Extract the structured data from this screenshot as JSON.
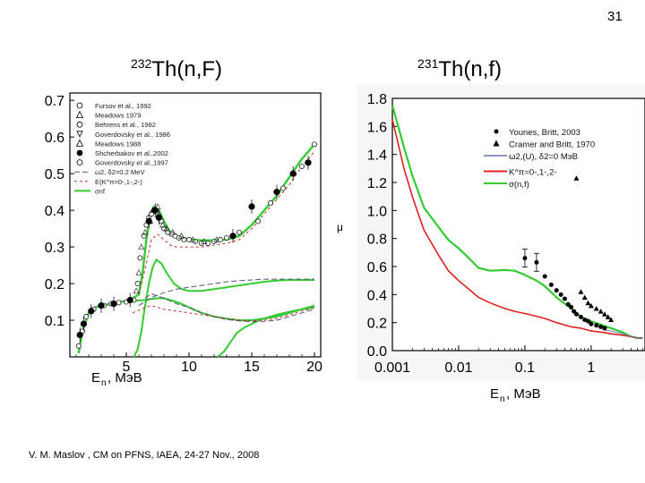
{
  "slide": {
    "page_number": "31",
    "footer": "V. M. Maslov ,   CM on PFNS, IAEA, 24-27 Nov., 2008"
  },
  "chart_data": [
    {
      "type": "scatter",
      "title_mass": "232",
      "title_text": "Th(n,F)",
      "xlabel_main": "E",
      "xlabel_sub": "n",
      "xlabel_unit": ", МэВ",
      "xlim": [
        0.5,
        20.5
      ],
      "ylim": [
        0.0,
        0.72
      ],
      "xticks": [
        5,
        10,
        15,
        20
      ],
      "yticks": [
        0.1,
        0.2,
        0.3,
        0.4,
        0.5,
        0.6,
        0.7
      ],
      "tick_labels_x": [
        "5",
        "10",
        "15",
        "20"
      ],
      "tick_labels_y": [
        "0.1",
        "0.2",
        "0.3",
        "0.4",
        "0.5",
        "0.6",
        "0.7"
      ],
      "legend": [
        {
          "label": "Fursov et al., 1992",
          "marker": "circle-open"
        },
        {
          "label": "Meadows 1979",
          "marker": "triangle-open"
        },
        {
          "label": "Behrens et al., 1982",
          "marker": "circle-open"
        },
        {
          "label": "Goverdovsky et al., 1986",
          "marker": "triangle-down-open"
        },
        {
          "label": "Meadows 1988",
          "marker": "triangle-open"
        },
        {
          "label": "Shcherbakov et al.,2002",
          "marker": "circle-filled"
        },
        {
          "label": "Goverdovsky et al.,1997",
          "marker": "circle-open"
        },
        {
          "label": "ω2, δ2=0.2 MeV",
          "line": "#555577",
          "dash": "6,3"
        },
        {
          "label": "E(K^π=0-,1-,2-)",
          "line": "#c03030",
          "dash": "3,3"
        },
        {
          "label": "σnf",
          "line": "#33cc33",
          "dash": ""
        }
      ],
      "series": [
        {
          "name": "σnf",
          "color": "#33cc33",
          "width": 2.4,
          "x": [
            1.2,
            1.5,
            2,
            2.5,
            3,
            3.5,
            4,
            4.5,
            5,
            5.5,
            6,
            6.3,
            6.6,
            6.9,
            7.2,
            7.6,
            8,
            8.5,
            9,
            9.5,
            10,
            11,
            12,
            13,
            14,
            15,
            16,
            17,
            18,
            19,
            19.5,
            20
          ],
          "y": [
            0.01,
            0.07,
            0.12,
            0.135,
            0.14,
            0.143,
            0.147,
            0.15,
            0.152,
            0.16,
            0.17,
            0.23,
            0.32,
            0.39,
            0.41,
            0.4,
            0.37,
            0.34,
            0.33,
            0.325,
            0.32,
            0.318,
            0.318,
            0.32,
            0.33,
            0.36,
            0.4,
            0.44,
            0.49,
            0.54,
            0.56,
            0.58
          ]
        },
        {
          "name": "second-chance fission",
          "color": "#33cc33",
          "width": 2.0,
          "x": [
            5.6,
            5.9,
            6.2,
            6.5,
            6.8,
            7.1,
            7.4,
            7.8,
            8.2,
            8.8,
            9.4,
            10,
            11,
            12,
            13,
            14,
            15,
            16,
            17,
            18,
            19,
            20
          ],
          "y": [
            0.0,
            0.02,
            0.07,
            0.14,
            0.2,
            0.245,
            0.265,
            0.255,
            0.23,
            0.2,
            0.185,
            0.18,
            0.18,
            0.185,
            0.19,
            0.195,
            0.2,
            0.205,
            0.208,
            0.21,
            0.21,
            0.21
          ]
        },
        {
          "name": "first-chance fission",
          "color": "#33cc33",
          "width": 2.0,
          "x": [
            1.2,
            1.5,
            2,
            2.5,
            3,
            3.5,
            4,
            4.5,
            5,
            5.5,
            6,
            6.5,
            7,
            7.5,
            8,
            8.5,
            9,
            9.5,
            10,
            11,
            12,
            13,
            14,
            15,
            16,
            17,
            18,
            19,
            20
          ],
          "y": [
            0.01,
            0.07,
            0.12,
            0.135,
            0.14,
            0.143,
            0.147,
            0.15,
            0.152,
            0.153,
            0.154,
            0.155,
            0.158,
            0.16,
            0.16,
            0.155,
            0.15,
            0.143,
            0.135,
            0.12,
            0.11,
            0.104,
            0.1,
            0.1,
            0.105,
            0.11,
            0.12,
            0.13,
            0.14
          ]
        },
        {
          "name": "third-chance fission",
          "color": "#33cc33",
          "width": 2.0,
          "x": [
            12.3,
            12.8,
            13.3,
            13.8,
            14.4,
            15,
            15.6,
            16.2,
            17,
            18,
            19,
            20
          ],
          "y": [
            0.0,
            0.015,
            0.04,
            0.065,
            0.08,
            0.09,
            0.1,
            0.107,
            0.115,
            0.123,
            0.13,
            0.135
          ]
        },
        {
          "name": "ω2 rising",
          "color": "#555577",
          "width": 1.0,
          "dash": "6,3",
          "x": [
            6,
            7,
            8,
            9,
            10,
            11,
            12,
            13,
            14,
            15,
            16,
            17,
            18,
            19,
            20
          ],
          "y": [
            0.14,
            0.162,
            0.175,
            0.185,
            0.19,
            0.195,
            0.2,
            0.205,
            0.208,
            0.21,
            0.212,
            0.212,
            0.212,
            0.212,
            0.212
          ]
        },
        {
          "name": "ω2 decaying",
          "color": "#555577",
          "width": 1.0,
          "dash": "6,3",
          "x": [
            6.5,
            7,
            8,
            9,
            10,
            11,
            12,
            13,
            14,
            15,
            16,
            17,
            18,
            19,
            20
          ],
          "y": [
            0.16,
            0.172,
            0.16,
            0.145,
            0.135,
            0.12,
            0.11,
            0.102,
            0.098,
            0.096,
            0.097,
            0.1,
            0.11,
            0.12,
            0.13
          ]
        },
        {
          "name": "E(K) main",
          "color": "#c03030",
          "width": 1.0,
          "dash": "3,3",
          "x": [
            6,
            6.5,
            7,
            7.5,
            8,
            8.5,
            9,
            10,
            11,
            12,
            13,
            14,
            15,
            16,
            17,
            18,
            19,
            20
          ],
          "y": [
            0.17,
            0.24,
            0.32,
            0.335,
            0.32,
            0.305,
            0.3,
            0.3,
            0.3,
            0.305,
            0.31,
            0.32,
            0.35,
            0.39,
            0.43,
            0.47,
            0.52,
            0.56
          ]
        },
        {
          "name": "E(K) lower",
          "color": "#c03030",
          "width": 1.0,
          "dash": "3,3",
          "x": [
            5.5,
            6.5,
            7,
            8,
            9,
            10,
            11,
            12,
            13,
            14,
            15,
            16,
            17,
            18,
            19,
            20
          ],
          "y": [
            0.12,
            0.135,
            0.14,
            0.13,
            0.125,
            0.12,
            0.115,
            0.11,
            0.105,
            0.1,
            0.098,
            0.1,
            0.105,
            0.115,
            0.125,
            0.135
          ]
        }
      ],
      "points_filled": {
        "x": [
          1.3,
          1.6,
          2.2,
          3,
          4,
          5.3,
          6.8,
          7.3,
          7.6,
          13.5,
          15,
          17,
          18.3,
          19.5
        ],
        "y": [
          0.06,
          0.09,
          0.125,
          0.14,
          0.145,
          0.155,
          0.37,
          0.4,
          0.38,
          0.33,
          0.41,
          0.45,
          0.5,
          0.53
        ]
      },
      "points_open": {
        "x": [
          1.2,
          1.5,
          1.8,
          2.4,
          3.2,
          3.8,
          4.4,
          5.0,
          5.6,
          5.9,
          6.1,
          6.4,
          6.6,
          6.8,
          7.0,
          7.2,
          7.4,
          7.6,
          7.8,
          8.0,
          8.3,
          8.6,
          8.9,
          9.2,
          9.6,
          10.0,
          10.5,
          11,
          11.5,
          12,
          12.5,
          13,
          14,
          15.5,
          16.5,
          17.5,
          19,
          20
        ],
        "y": [
          0.03,
          0.07,
          0.11,
          0.13,
          0.14,
          0.145,
          0.148,
          0.15,
          0.155,
          0.2,
          0.27,
          0.33,
          0.36,
          0.38,
          0.39,
          0.4,
          0.395,
          0.385,
          0.37,
          0.35,
          0.34,
          0.335,
          0.33,
          0.325,
          0.32,
          0.32,
          0.315,
          0.31,
          0.31,
          0.315,
          0.32,
          0.325,
          0.34,
          0.37,
          0.42,
          0.46,
          0.52,
          0.58
        ]
      },
      "points_triangle": {
        "x": [
          5.8,
          6.0,
          6.2,
          6.5,
          6.9,
          7.1,
          7.5,
          7.9,
          8.2,
          8.7,
          9.4,
          10.3,
          11.2,
          12.2
        ],
        "y": [
          0.18,
          0.23,
          0.3,
          0.34,
          0.37,
          0.4,
          0.41,
          0.36,
          0.35,
          0.34,
          0.33,
          0.32,
          0.315,
          0.32
        ]
      }
    },
    {
      "type": "scatter",
      "title_mass": "231",
      "title_text": "Th(n,f)",
      "xlabel_main": "E",
      "xlabel_sub": "n",
      "xlabel_unit": ", МэВ",
      "xscale": "log",
      "xlim": [
        0.001,
        6.5
      ],
      "ylim": [
        0.0,
        1.8
      ],
      "xticks": [
        0.001,
        0.01,
        0.1,
        1
      ],
      "yticks": [
        0.0,
        0.2,
        0.4,
        0.6,
        0.8,
        1.0,
        1.2,
        1.4,
        1.6,
        1.8
      ],
      "tick_labels_x": [
        "0.001",
        "0.01",
        "0.1",
        "1"
      ],
      "tick_labels_y": [
        "0.0",
        "0.2",
        "0.4",
        "0.6",
        "0.8",
        "1.0",
        "1.2",
        "1.4",
        "1.6",
        "1.8"
      ],
      "ylabel": "μ",
      "legend": [
        {
          "label": "Younes, Britt, 2003",
          "marker": "circle-filled"
        },
        {
          "label": "Cramer and Britt, 1970",
          "marker": "triangle-filled"
        },
        {
          "label": "ω2,(U), δ2=0 MэВ",
          "line": "#6677aa",
          "dash": ""
        },
        {
          "label": "K^π=0-,1-,2-",
          "line": "#e02020",
          "dash": ""
        },
        {
          "label": "σ(n,f)",
          "line": "#33cc33",
          "dash": ""
        }
      ],
      "series": [
        {
          "name": "σ(n,f)",
          "color": "#33cc33",
          "width": 2.2,
          "x": [
            0.001,
            0.0015,
            0.002,
            0.003,
            0.005,
            0.007,
            0.01,
            0.015,
            0.02,
            0.03,
            0.05,
            0.07,
            0.1,
            0.15,
            0.2,
            0.3,
            0.5,
            0.7,
            1.0,
            1.5,
            2.0,
            3.0,
            4.0,
            5.0,
            6.0
          ],
          "y": [
            1.75,
            1.45,
            1.25,
            1.02,
            0.88,
            0.79,
            0.73,
            0.65,
            0.59,
            0.57,
            0.575,
            0.57,
            0.54,
            0.5,
            0.46,
            0.38,
            0.3,
            0.24,
            0.21,
            0.18,
            0.16,
            0.13,
            0.1,
            0.09,
            0.09
          ]
        },
        {
          "name": "K",
          "color": "#e02020",
          "width": 1.6,
          "x": [
            0.001,
            0.0015,
            0.002,
            0.003,
            0.005,
            0.007,
            0.01,
            0.015,
            0.02,
            0.03,
            0.05,
            0.07,
            0.1,
            0.15,
            0.2,
            0.3,
            0.5,
            0.7,
            1.0,
            1.5,
            2.0,
            3.0,
            4.0,
            5.0,
            6.0
          ],
          "y": [
            1.65,
            1.3,
            1.1,
            0.86,
            0.68,
            0.57,
            0.5,
            0.43,
            0.38,
            0.34,
            0.3,
            0.28,
            0.265,
            0.245,
            0.23,
            0.2,
            0.17,
            0.16,
            0.14,
            0.13,
            0.12,
            0.11,
            0.1,
            0.09,
            0.09
          ]
        },
        {
          "name": "ω2",
          "color": "#6677aa",
          "width": 1.0,
          "x": [
            1.5,
            2.0,
            3.0,
            4.0,
            5.0,
            6.0
          ],
          "y": [
            0.15,
            0.14,
            0.12,
            0.1,
            0.09,
            0.09
          ]
        }
      ],
      "points_filled": {
        "x": [
          0.1,
          0.15,
          0.2,
          0.25,
          0.3,
          0.35,
          0.4,
          0.45,
          0.5,
          0.55,
          0.6,
          0.7,
          0.8,
          0.9,
          1.0,
          1.2,
          1.4,
          1.6
        ],
        "y": [
          0.66,
          0.63,
          0.53,
          0.47,
          0.43,
          0.4,
          0.37,
          0.33,
          0.31,
          0.28,
          0.26,
          0.24,
          0.22,
          0.21,
          0.19,
          0.18,
          0.17,
          0.16
        ]
      },
      "points_triangle": {
        "x": [
          0.6,
          0.7,
          0.8,
          0.9,
          1.0,
          1.2,
          1.4,
          1.6,
          1.8,
          2.0
        ],
        "y": [
          1.23,
          0.42,
          0.38,
          0.34,
          0.32,
          0.3,
          0.28,
          0.26,
          0.24,
          0.22
        ]
      }
    }
  ]
}
